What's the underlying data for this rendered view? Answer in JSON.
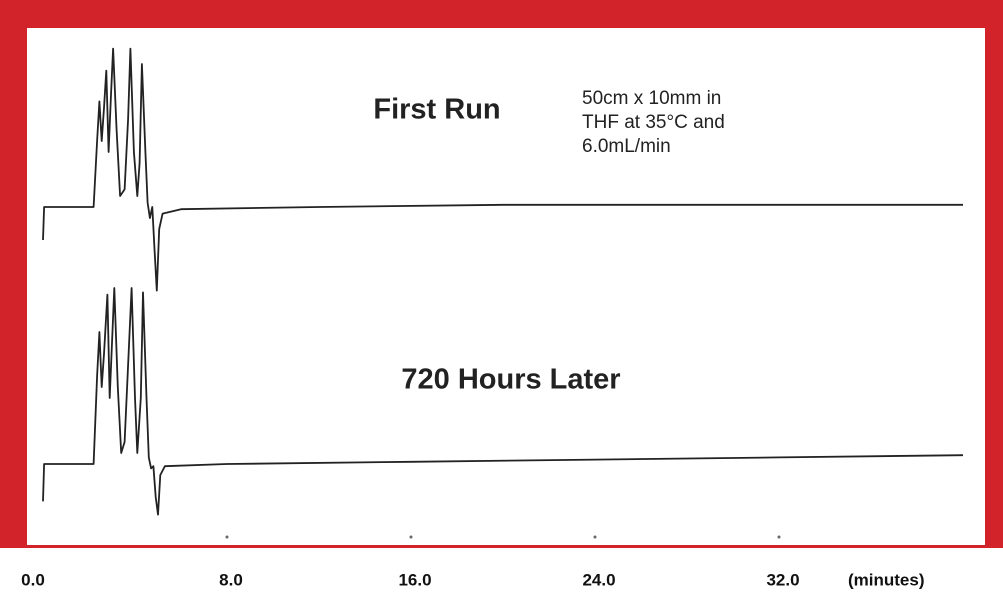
{
  "chart_data": {
    "type": "line",
    "titles": [
      "First Run",
      "720 Hours Later"
    ],
    "annotation": [
      "50cm x 10mm in",
      "THF at 35°C and",
      "6.0mL/min"
    ],
    "xlabel": "(minutes)",
    "xlim": [
      0,
      40
    ],
    "xticks": [
      {
        "value": 0,
        "label": "0.0"
      },
      {
        "value": 8,
        "label": "8.0"
      },
      {
        "value": 16,
        "label": "16.0"
      },
      {
        "value": 24,
        "label": "24.0"
      },
      {
        "value": 32,
        "label": "32.0"
      }
    ],
    "ylim": [
      -45,
      85
    ],
    "frame_color": "#d2232a",
    "series": [
      {
        "name": "First Run",
        "color": "#222222",
        "x": [
          0,
          0.05,
          2.2,
          2.35,
          2.45,
          2.55,
          2.65,
          2.75,
          2.85,
          2.95,
          3.05,
          3.2,
          3.35,
          3.55,
          3.7,
          3.8,
          3.95,
          4.1,
          4.2,
          4.3,
          4.45,
          4.55,
          4.65,
          4.75,
          4.85,
          4.95,
          5.05,
          5.2,
          6,
          12,
          20,
          28,
          36,
          40
        ],
        "values": [
          -15,
          0,
          0,
          30,
          48,
          30,
          45,
          62,
          25,
          50,
          72,
          35,
          5,
          8,
          40,
          72,
          25,
          5,
          20,
          65,
          25,
          2,
          -5,
          0,
          -20,
          -38,
          -10,
          -3,
          -1,
          0,
          1,
          1,
          1,
          1
        ]
      },
      {
        "name": "720 Hours Later",
        "color": "#222222",
        "x": [
          0,
          0.05,
          2.2,
          2.35,
          2.45,
          2.55,
          2.65,
          2.8,
          2.9,
          3.0,
          3.1,
          3.25,
          3.4,
          3.55,
          3.7,
          3.85,
          4.0,
          4.1,
          4.25,
          4.35,
          4.5,
          4.6,
          4.7,
          4.8,
          4.9,
          5.0,
          5.1,
          5.3,
          8,
          16,
          24,
          32,
          40
        ],
        "values": [
          -17,
          0,
          0,
          40,
          60,
          35,
          50,
          77,
          30,
          55,
          80,
          35,
          5,
          10,
          45,
          80,
          30,
          5,
          30,
          78,
          30,
          3,
          -2,
          -1,
          -15,
          -23,
          -5,
          -1,
          0,
          1,
          2,
          3,
          4
        ]
      }
    ]
  }
}
